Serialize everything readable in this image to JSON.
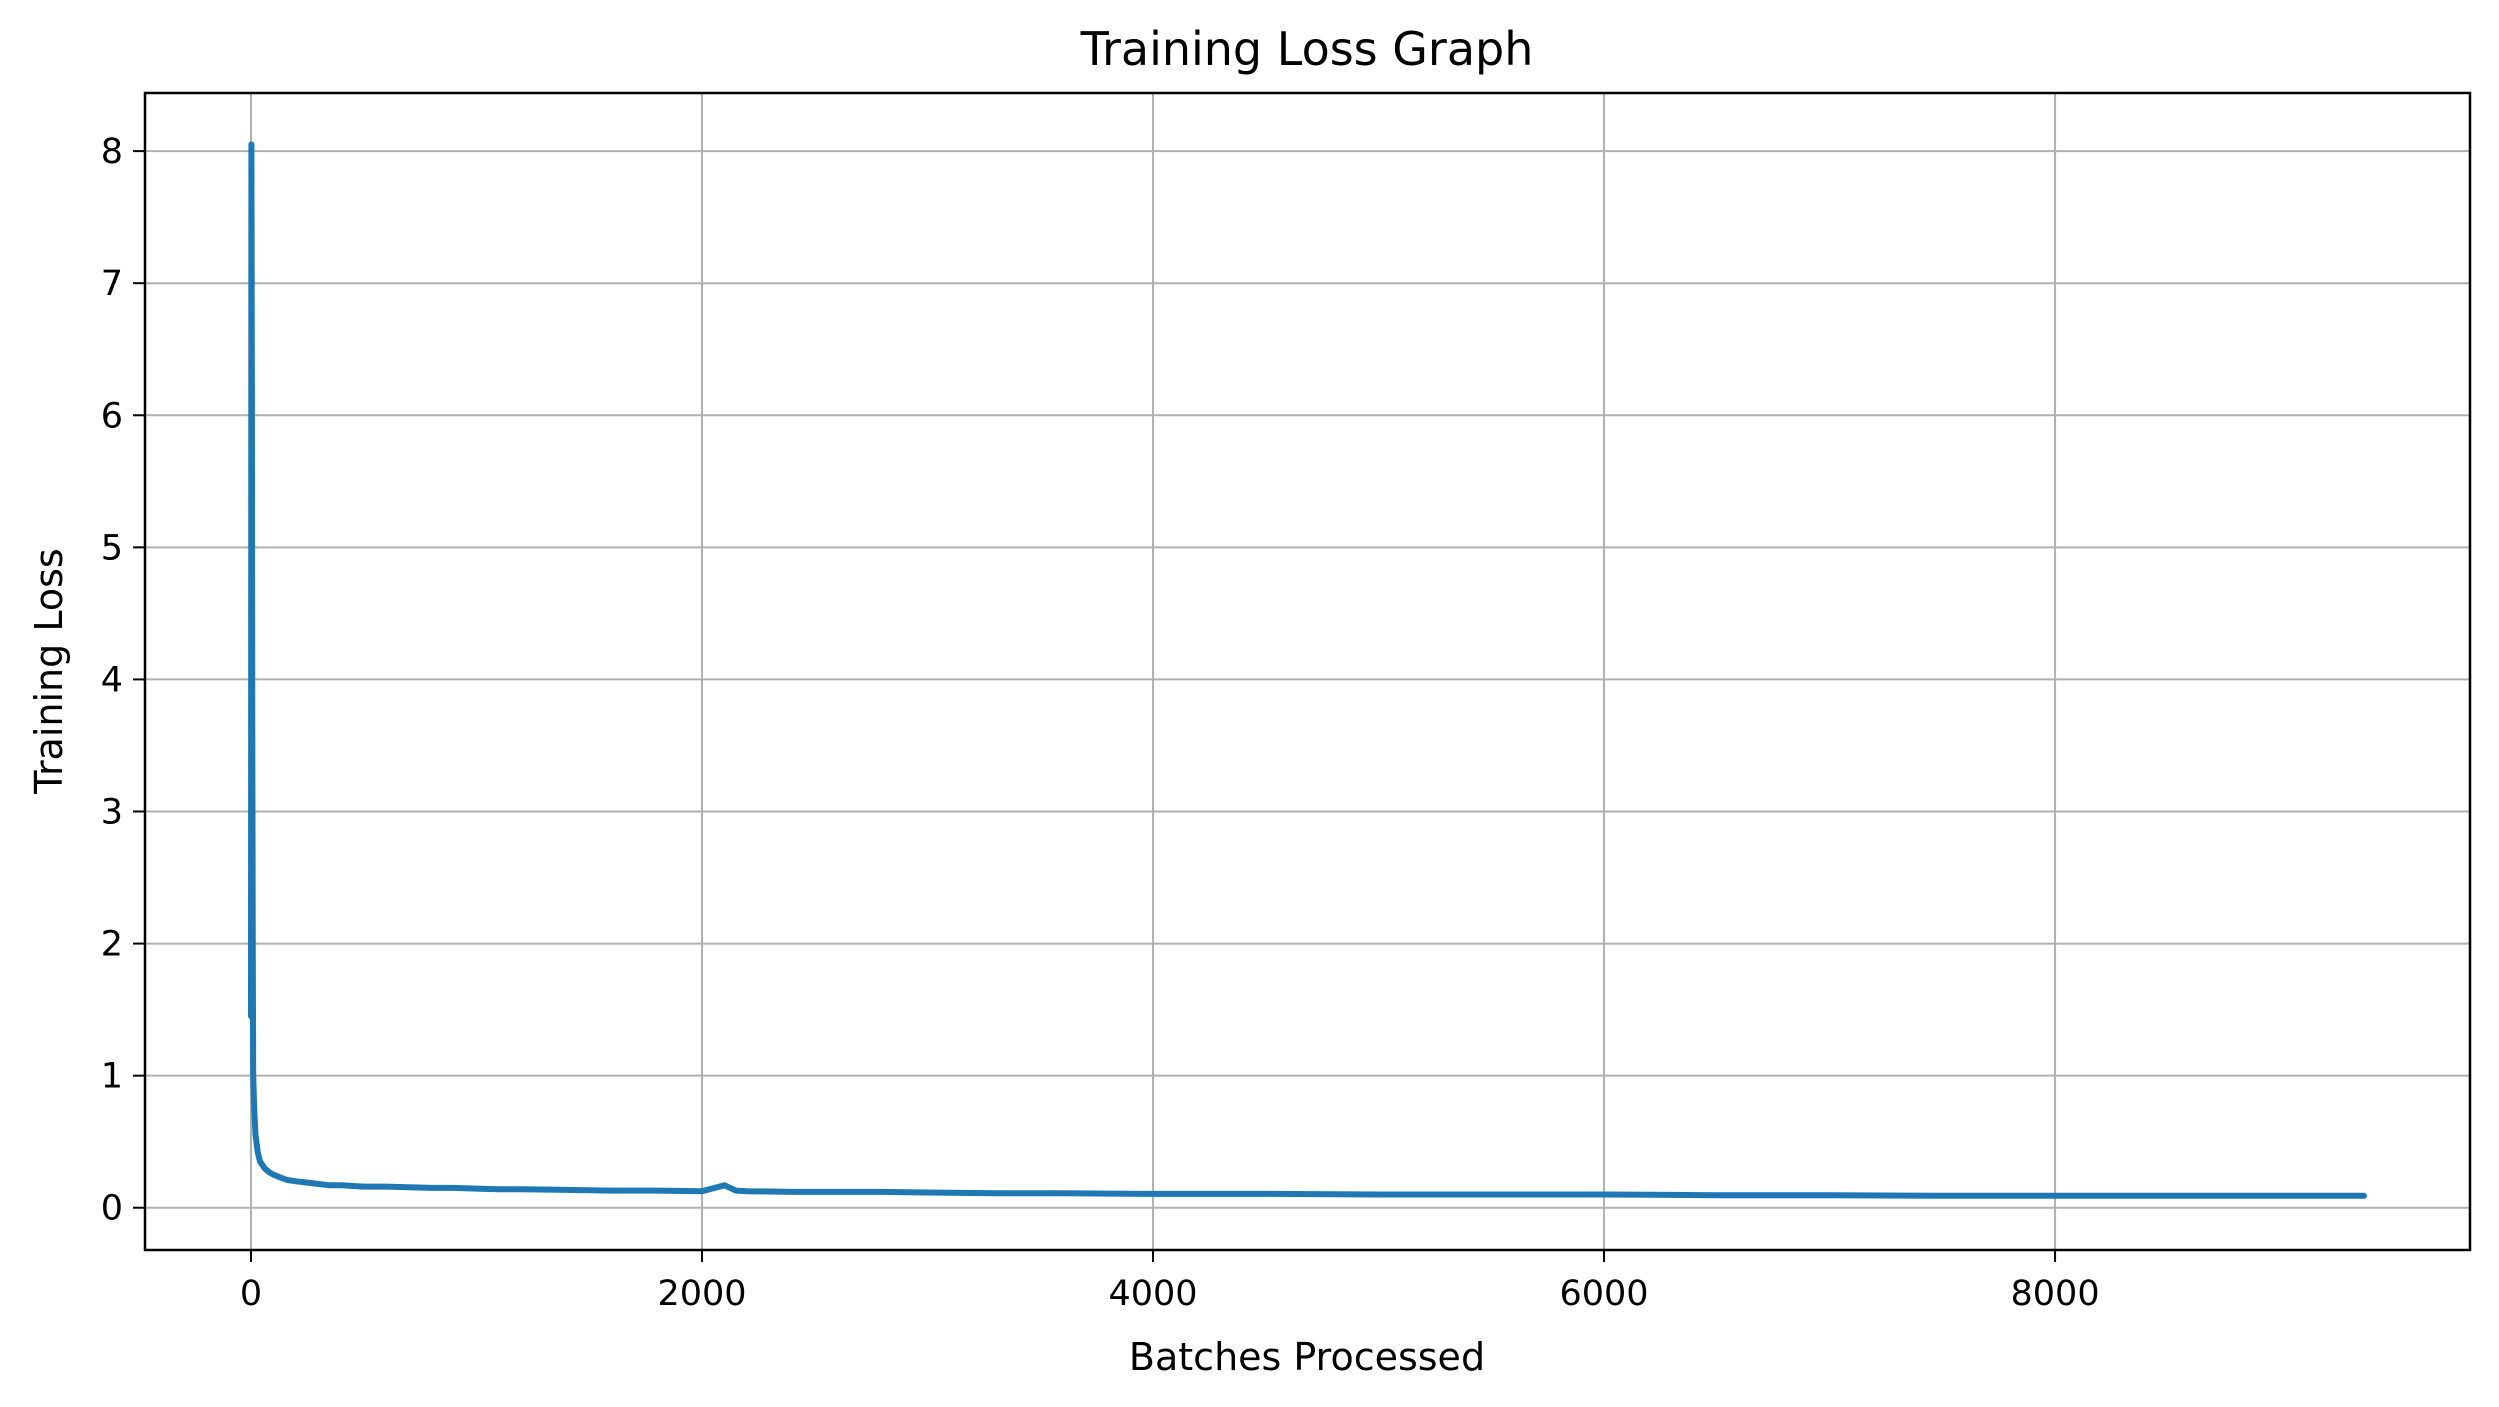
{
  "chart_data": {
    "type": "line",
    "title": "Training Loss Graph",
    "xlabel": "Batches Processed",
    "ylabel": "Training Loss",
    "xlim": [
      -470,
      9840
    ],
    "ylim": [
      -0.32,
      8.44
    ],
    "grid": true,
    "legend": "none",
    "x_ticks": [
      0,
      2000,
      4000,
      6000,
      8000
    ],
    "x_tick_labels": [
      "0",
      "2000",
      "4000",
      "6000",
      "8000"
    ],
    "y_ticks": [
      0,
      1,
      2,
      3,
      4,
      5,
      6,
      7,
      8
    ],
    "y_tick_labels": [
      "0",
      "1",
      "2",
      "3",
      "4",
      "5",
      "6",
      "7",
      "8"
    ],
    "series": [
      {
        "color": "#1f77b4",
        "x": [
          0,
          2,
          4,
          6,
          8,
          10,
          15,
          20,
          30,
          40,
          60,
          80,
          100,
          130,
          160,
          200,
          250,
          300,
          350,
          400,
          500,
          600,
          700,
          800,
          900,
          1000,
          1100,
          1200,
          1400,
          1600,
          1800,
          2000,
          2100,
          2150,
          2200,
          2400,
          2600,
          2800,
          3000,
          3300,
          3600,
          4000,
          4500,
          5000,
          5500,
          6000,
          6500,
          7000,
          7500,
          8000,
          8500,
          9000,
          9370
        ],
        "y": [
          1.45,
          8.05,
          6.2,
          3.6,
          1.9,
          1.0,
          0.72,
          0.55,
          0.42,
          0.35,
          0.3,
          0.27,
          0.25,
          0.23,
          0.21,
          0.2,
          0.19,
          0.18,
          0.17,
          0.17,
          0.16,
          0.16,
          0.155,
          0.15,
          0.15,
          0.145,
          0.14,
          0.14,
          0.135,
          0.13,
          0.13,
          0.125,
          0.17,
          0.13,
          0.125,
          0.12,
          0.12,
          0.12,
          0.115,
          0.11,
          0.11,
          0.105,
          0.105,
          0.1,
          0.1,
          0.1,
          0.095,
          0.095,
          0.09,
          0.09,
          0.09,
          0.09,
          0.09
        ]
      }
    ]
  }
}
